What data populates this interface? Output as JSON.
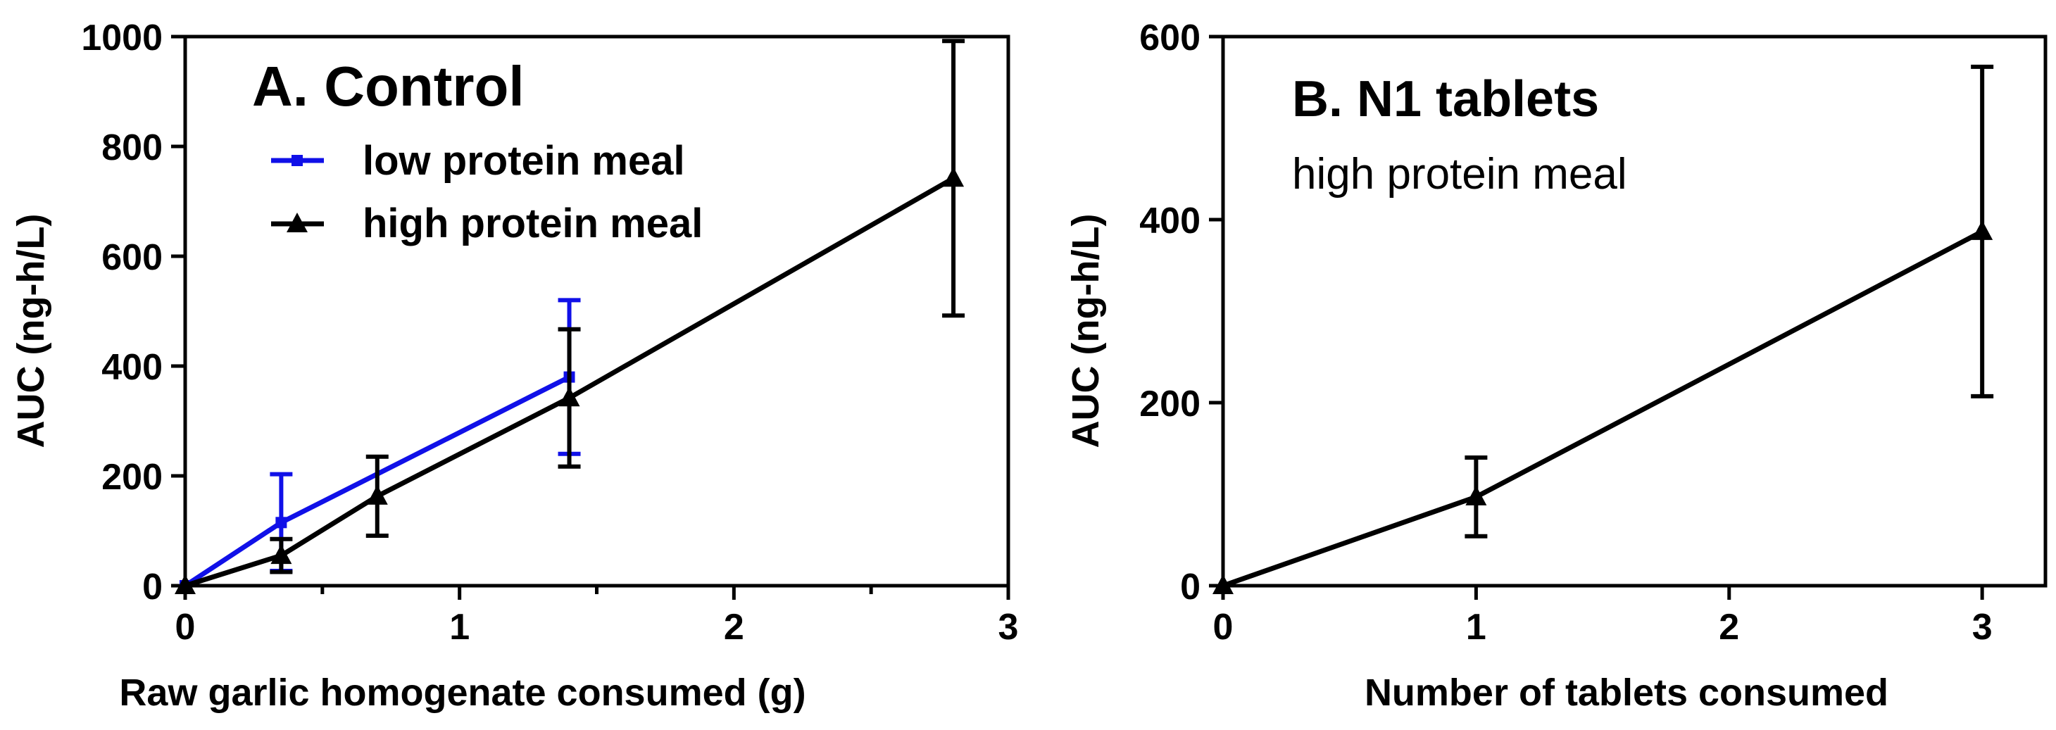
{
  "chart_data": [
    {
      "type": "line",
      "title": "A. Control",
      "subtitle": "",
      "xlabel": "Raw garlic homogenate consumed (g)",
      "ylabel": "AUC (ng-h/L)",
      "xlim": [
        0,
        3
      ],
      "ylim": [
        0,
        1000
      ],
      "xticks": [
        0,
        1,
        2,
        3
      ],
      "xminor": [
        0.5,
        1.5,
        2.5
      ],
      "yticks": [
        0,
        200,
        400,
        600,
        800,
        1000
      ],
      "legend_position": "top-left",
      "grid": false,
      "series": [
        {
          "name": "low protein meal",
          "color": "#1010e8",
          "marker": "square",
          "points": [
            {
              "x": 0,
              "y": 0,
              "err": 0
            },
            {
              "x": 0.35,
              "y": 115,
              "err": 88
            },
            {
              "x": 1.4,
              "y": 380,
              "err": 140
            }
          ]
        },
        {
          "name": "high protein meal",
          "color": "#000000",
          "marker": "triangle",
          "points": [
            {
              "x": 0,
              "y": 0,
              "err": 0
            },
            {
              "x": 0.35,
              "y": 55,
              "err": 30
            },
            {
              "x": 0.7,
              "y": 163,
              "err": 72
            },
            {
              "x": 1.4,
              "y": 342,
              "err": 125
            },
            {
              "x": 2.8,
              "y": 742,
              "err": 250
            }
          ]
        }
      ]
    },
    {
      "type": "line",
      "title": "B. N1 tablets",
      "subtitle": "high protein meal",
      "xlabel": "Number of tablets consumed",
      "ylabel": "AUC (ng-h/L)",
      "xlim": [
        0,
        3.25
      ],
      "ylim": [
        0,
        600
      ],
      "xticks": [
        0,
        1,
        2,
        3
      ],
      "xminor": [],
      "yticks": [
        0,
        200,
        400,
        600
      ],
      "legend_position": "none",
      "grid": false,
      "series": [
        {
          "name": "high protein meal",
          "color": "#000000",
          "marker": "triangle",
          "points": [
            {
              "x": 0,
              "y": 0,
              "err": 0
            },
            {
              "x": 1,
              "y": 97,
              "err": 43
            },
            {
              "x": 3,
              "y": 387,
              "err": 180
            }
          ]
        }
      ]
    }
  ]
}
